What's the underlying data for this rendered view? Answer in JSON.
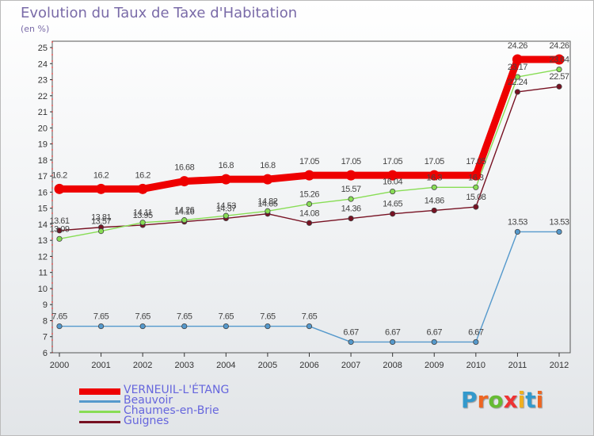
{
  "title": "Evolution du Taux de Taxe d'Habitation",
  "subtitle": "(en %)",
  "logo_text": "Proxiti",
  "chart_data": {
    "type": "line",
    "title": "Evolution du Taux de Taxe d'Habitation",
    "subtitle": "(en %)",
    "categories": [
      "2000",
      "2001",
      "2002",
      "2003",
      "2004",
      "2005",
      "2006",
      "2007",
      "2008",
      "2009",
      "2010",
      "2011",
      "2012"
    ],
    "ylim": [
      6,
      25
    ],
    "yticks": [
      6,
      7,
      8,
      9,
      10,
      11,
      12,
      13,
      14,
      15,
      16,
      17,
      18,
      19,
      20,
      21,
      22,
      23,
      24,
      25
    ],
    "grid": false,
    "legend_position": "bottom-left",
    "series": [
      {
        "name": "VERNEUIL-L'ÉTANG",
        "color": "#ee0000",
        "values": [
          16.2,
          16.2,
          16.2,
          16.68,
          16.8,
          16.8,
          17.05,
          17.05,
          17.05,
          17.05,
          17.05,
          24.26,
          24.26
        ],
        "labels": [
          "16.2",
          "16.2",
          "16.2",
          "16.68",
          "16.8",
          "16.8",
          "17.05",
          "17.05",
          "17.05",
          "17.05",
          "17.05",
          "24.26",
          "24.26"
        ]
      },
      {
        "name": "Beauvoir",
        "color": "#5599cc",
        "values": [
          7.65,
          7.65,
          7.65,
          7.65,
          7.65,
          7.65,
          7.65,
          6.67,
          6.67,
          6.67,
          6.67,
          13.53,
          13.53
        ],
        "labels": [
          "7.65",
          "7.65",
          "7.65",
          "7.65",
          "7.65",
          "7.65",
          "7.65",
          "6.67",
          "6.67",
          "6.67",
          "6.67",
          "13.53",
          "13.53"
        ]
      },
      {
        "name": "Chaumes-en-Brie",
        "color": "#88dd55",
        "values": [
          13.09,
          13.57,
          14.11,
          14.26,
          14.53,
          14.82,
          15.26,
          15.57,
          16.04,
          16.3,
          16.3,
          23.17,
          23.64
        ],
        "labels": [
          "13.09",
          "13.57",
          "14.11",
          "14.26",
          "14.53",
          "14.82",
          "15.26",
          "15.57",
          "16.04",
          "16.3",
          "16.3",
          "23.17",
          "23.64"
        ]
      },
      {
        "name": "Guignes",
        "color": "#771122",
        "values": [
          13.61,
          13.81,
          13.95,
          14.16,
          14.37,
          14.65,
          14.08,
          14.36,
          14.65,
          14.86,
          15.08,
          22.24,
          22.57
        ],
        "labels": [
          "13.61",
          "13.81",
          "13.95",
          "14.16",
          "14.37",
          "14.65",
          "14.08",
          "14.36",
          "14.65",
          "14.86",
          "15.08",
          "22.24",
          "22.57"
        ]
      }
    ]
  }
}
